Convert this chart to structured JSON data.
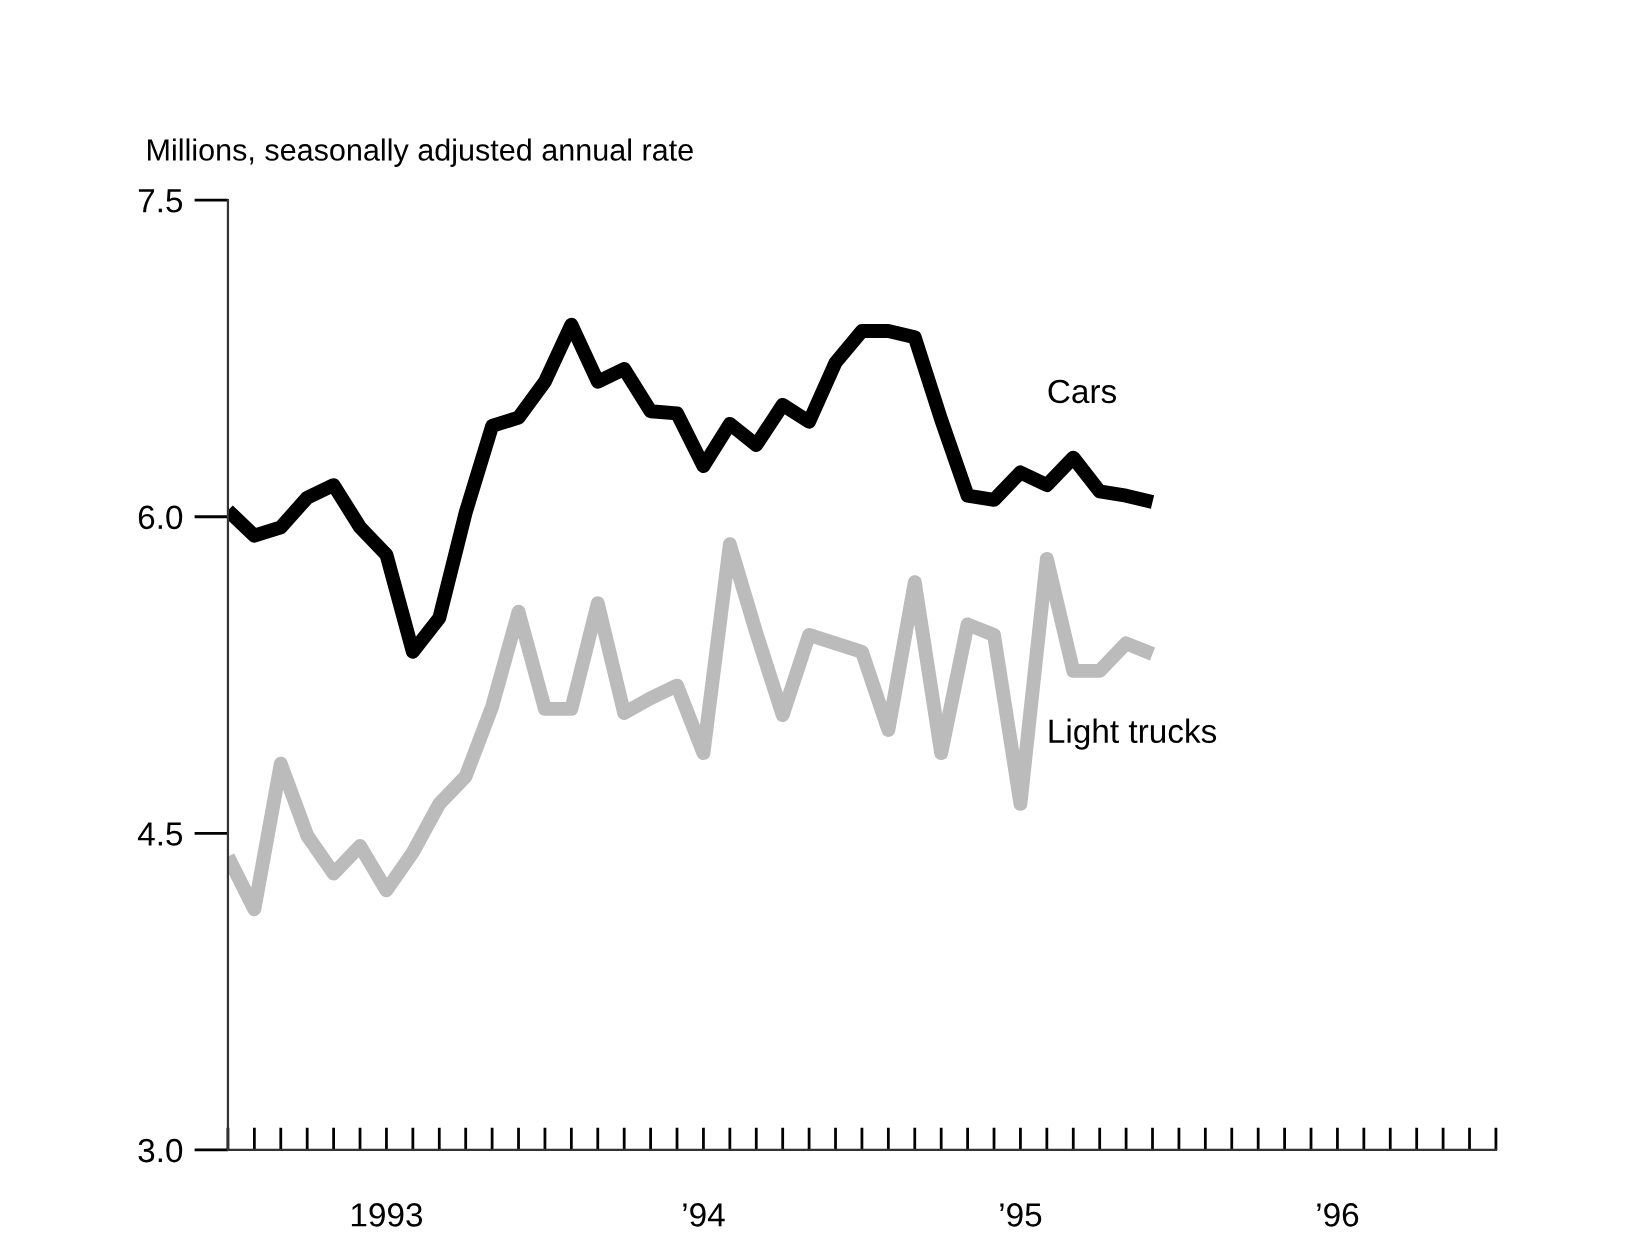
{
  "chart_data": {
    "type": "line",
    "ylabel": "Millions, seasonally adjusted annual rate",
    "x": [
      "1993-01",
      "1993-02",
      "1993-03",
      "1993-04",
      "1993-05",
      "1993-06",
      "1993-07",
      "1993-08",
      "1993-09",
      "1993-10",
      "1993-11",
      "1993-12",
      "1994-01",
      "1994-02",
      "1994-03",
      "1994-04",
      "1994-05",
      "1994-06",
      "1994-07",
      "1994-08",
      "1994-09",
      "1994-10",
      "1994-11",
      "1994-12",
      "1995-01",
      "1995-02",
      "1995-03",
      "1995-04",
      "1995-05",
      "1995-06",
      "1995-07",
      "1995-08",
      "1995-09",
      "1995-10",
      "1995-11",
      "1995-12"
    ],
    "series": [
      {
        "name": "Cars",
        "color": "#000000",
        "values": [
          6.03,
          5.91,
          5.95,
          6.09,
          6.15,
          5.95,
          5.82,
          5.36,
          5.52,
          6.02,
          6.43,
          6.47,
          6.64,
          6.91,
          6.64,
          6.7,
          6.5,
          6.49,
          6.24,
          6.44,
          6.34,
          6.53,
          6.45,
          6.73,
          6.88,
          6.88,
          6.85,
          6.46,
          6.1,
          6.08,
          6.21,
          6.15,
          6.28,
          6.12,
          6.1,
          6.07
        ]
      },
      {
        "name": "Light trucks",
        "color": "#bbbbbb",
        "values": [
          4.39,
          4.14,
          4.83,
          4.49,
          4.31,
          4.44,
          4.23,
          4.41,
          4.64,
          4.77,
          5.1,
          5.55,
          5.09,
          5.09,
          5.59,
          5.07,
          5.14,
          5.2,
          4.88,
          5.87,
          5.45,
          5.06,
          5.44,
          5.4,
          5.36,
          4.99,
          5.69,
          4.88,
          5.49,
          5.44,
          4.64,
          5.8,
          5.27,
          5.27,
          5.4,
          5.35
        ]
      }
    ],
    "xlim": [
      "1993-01",
      "1997-01"
    ],
    "xticks": [
      {
        "value": "1993-01",
        "label": null
      },
      {
        "value": "1993-02",
        "label": null
      },
      {
        "value": "1993-03",
        "label": null
      },
      {
        "value": "1993-04",
        "label": null
      },
      {
        "value": "1993-05",
        "label": null
      },
      {
        "value": "1993-06",
        "label": null
      },
      {
        "value": "1993-07",
        "label": "1993"
      },
      {
        "value": "1993-08",
        "label": null
      },
      {
        "value": "1993-09",
        "label": null
      },
      {
        "value": "1993-10",
        "label": null
      },
      {
        "value": "1993-11",
        "label": null
      },
      {
        "value": "1993-12",
        "label": null
      },
      {
        "value": "1994-01",
        "label": null
      },
      {
        "value": "1994-02",
        "label": null
      },
      {
        "value": "1994-03",
        "label": null
      },
      {
        "value": "1994-04",
        "label": null
      },
      {
        "value": "1994-05",
        "label": null
      },
      {
        "value": "1994-06",
        "label": null
      },
      {
        "value": "1994-07",
        "label": "’94"
      },
      {
        "value": "1994-08",
        "label": null
      },
      {
        "value": "1994-09",
        "label": null
      },
      {
        "value": "1994-10",
        "label": null
      },
      {
        "value": "1994-11",
        "label": null
      },
      {
        "value": "1994-12",
        "label": null
      },
      {
        "value": "1995-01",
        "label": null
      },
      {
        "value": "1995-02",
        "label": null
      },
      {
        "value": "1995-03",
        "label": null
      },
      {
        "value": "1995-04",
        "label": null
      },
      {
        "value": "1995-05",
        "label": null
      },
      {
        "value": "1995-06",
        "label": null
      },
      {
        "value": "1995-07",
        "label": "’95"
      },
      {
        "value": "1995-08",
        "label": null
      },
      {
        "value": "1995-09",
        "label": null
      },
      {
        "value": "1995-10",
        "label": null
      },
      {
        "value": "1995-11",
        "label": null
      },
      {
        "value": "1995-12",
        "label": null
      },
      {
        "value": "1996-01",
        "label": null
      },
      {
        "value": "1996-02",
        "label": null
      },
      {
        "value": "1996-03",
        "label": null
      },
      {
        "value": "1996-04",
        "label": null
      },
      {
        "value": "1996-05",
        "label": null
      },
      {
        "value": "1996-06",
        "label": null
      },
      {
        "value": "1996-07",
        "label": "’96"
      },
      {
        "value": "1996-08",
        "label": null
      },
      {
        "value": "1996-09",
        "label": null
      },
      {
        "value": "1996-10",
        "label": null
      },
      {
        "value": "1996-11",
        "label": null
      },
      {
        "value": "1996-12",
        "label": null
      },
      {
        "value": "1997-01",
        "label": null
      }
    ],
    "ylim": [
      3,
      7.5
    ],
    "yticks": [
      {
        "value": 3,
        "label": "3.0"
      },
      {
        "value": 4.5,
        "label": "4.5"
      },
      {
        "value": 6,
        "label": "6.0"
      },
      {
        "value": 7.5,
        "label": "7.5"
      }
    ],
    "grid": false,
    "legend": false,
    "line_style": "solid",
    "marker": "none"
  }
}
